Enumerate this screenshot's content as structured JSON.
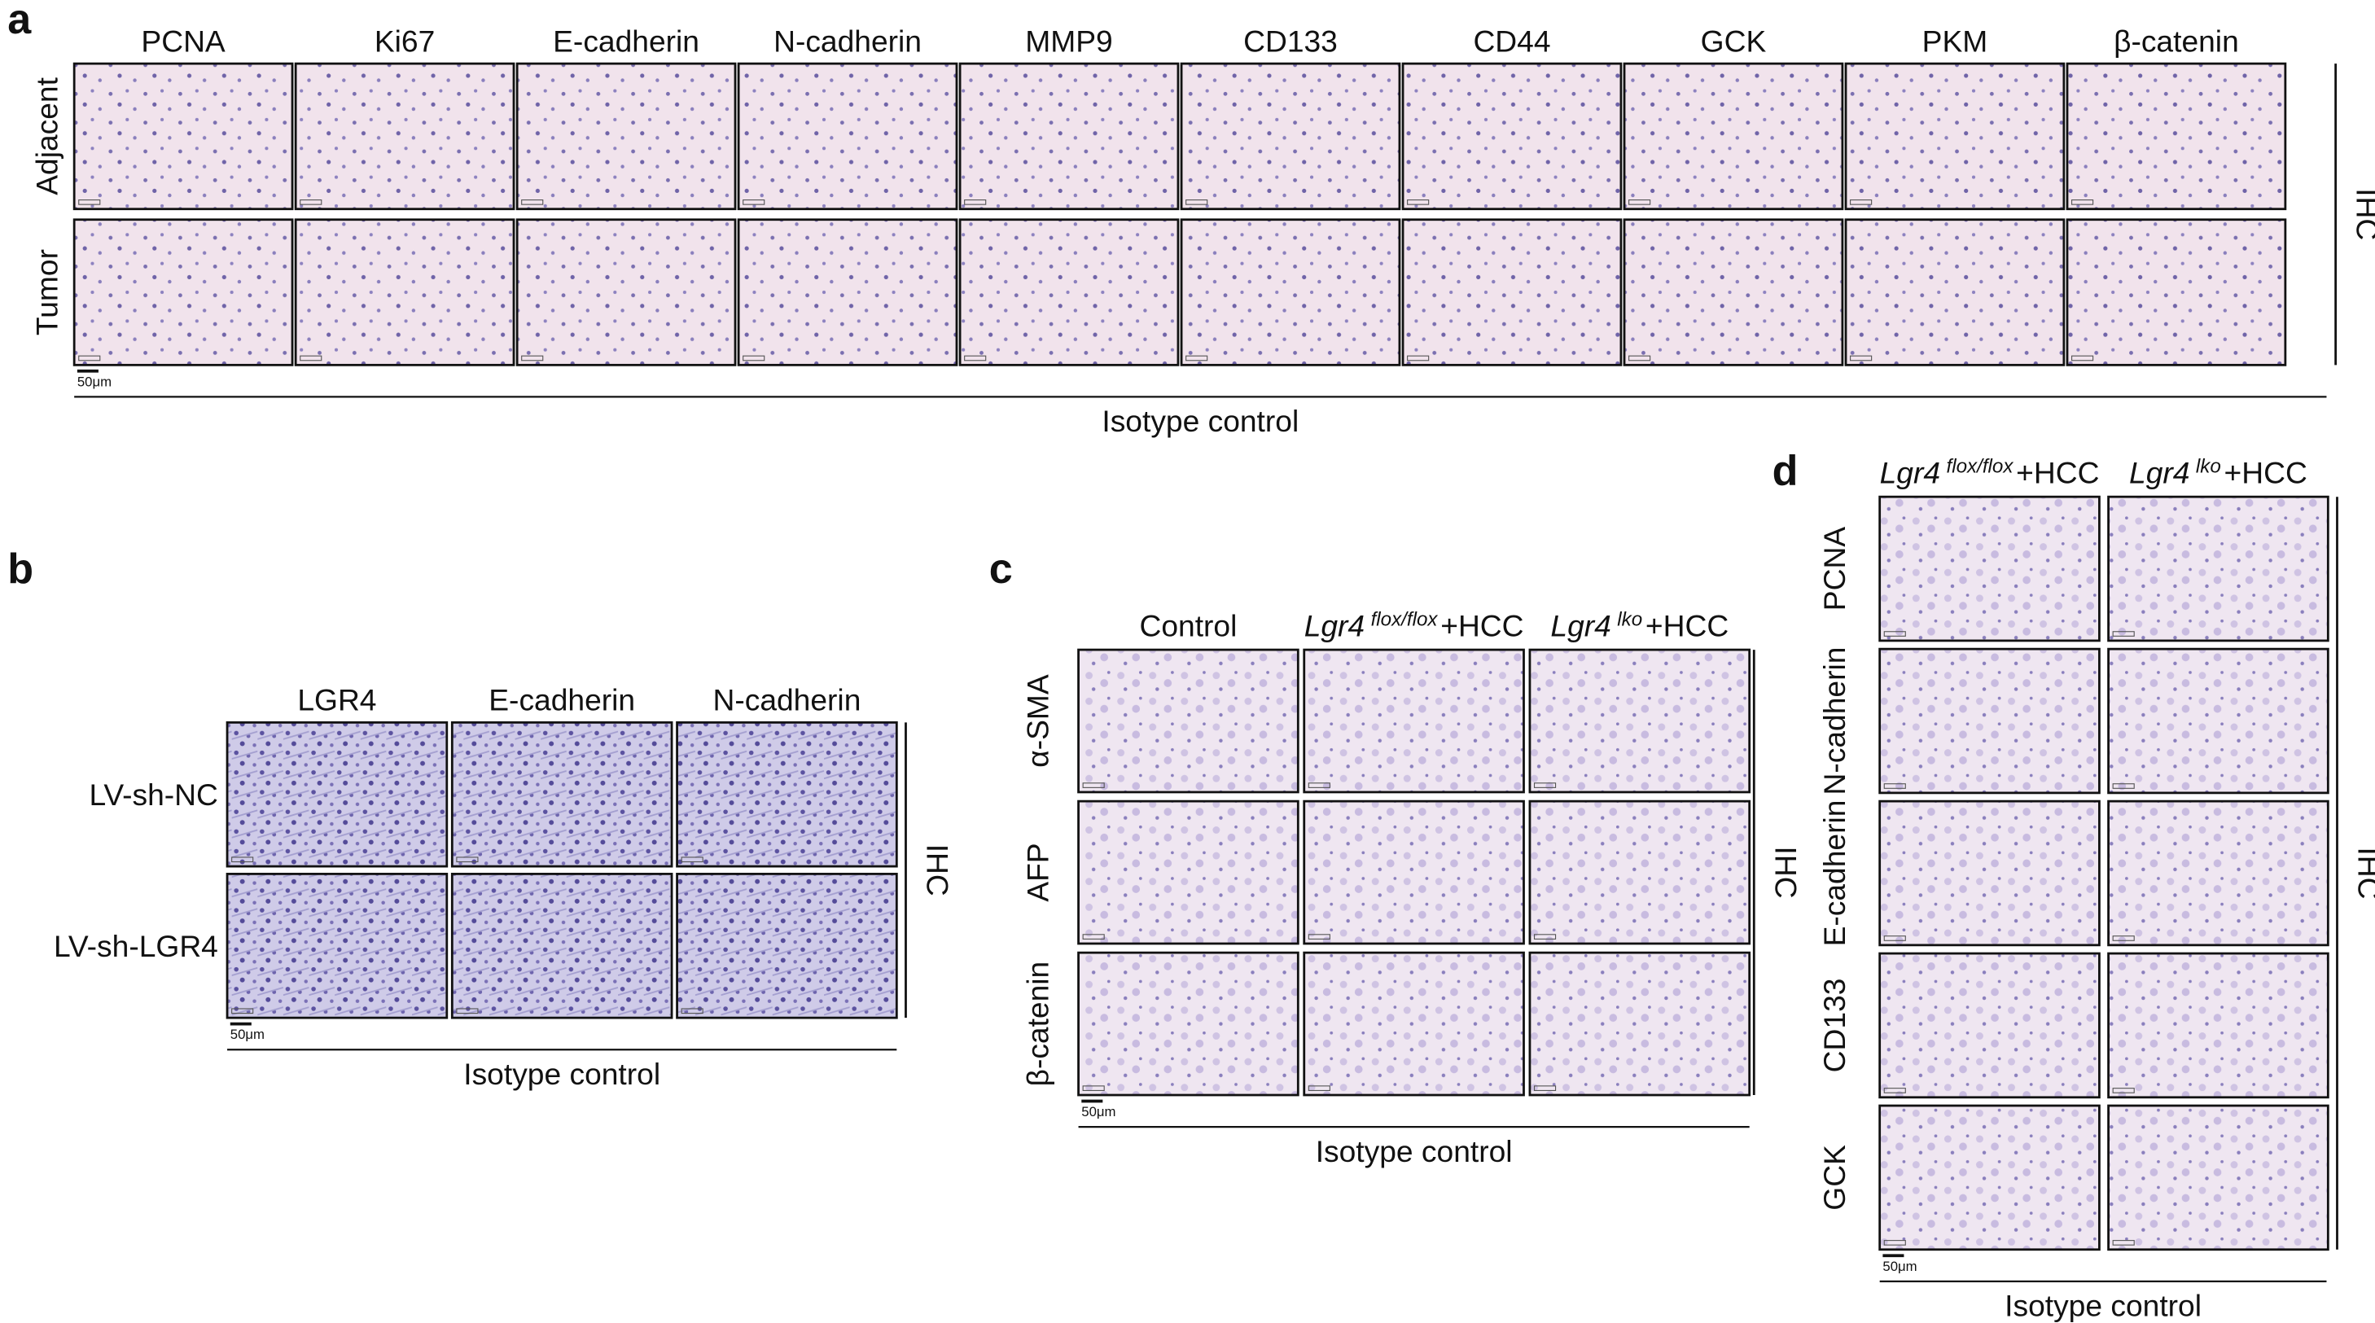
{
  "panels": [
    {
      "letter": "a",
      "columns": [
        {
          "text": "PCNA"
        },
        {
          "text": "Ki67"
        },
        {
          "text": "E-cadherin"
        },
        {
          "text": "N-cadherin"
        },
        {
          "text": "MMP9"
        },
        {
          "text": "CD133"
        },
        {
          "text": "CD44"
        },
        {
          "text": "GCK"
        },
        {
          "text": "PKM"
        },
        {
          "text": "β-catenin"
        }
      ],
      "rows": [
        "Adjacent",
        "Tumor"
      ],
      "side_label": "IHC",
      "scale_bar": "50μm",
      "footer": "Isotype control"
    },
    {
      "letter": "b",
      "columns": [
        {
          "text": "LGR4"
        },
        {
          "text": "E-cadherin"
        },
        {
          "text": "N-cadherin"
        }
      ],
      "rows": [
        "LV-sh-NC",
        "LV-sh-LGR4"
      ],
      "side_label": "IHC",
      "scale_bar": "50μm",
      "footer": "Isotype control"
    },
    {
      "letter": "c",
      "columns": [
        {
          "text": "Control"
        },
        {
          "gene": "Lgr4",
          "sup": "flox/flox",
          "suffix": "+HCC"
        },
        {
          "gene": "Lgr4",
          "sup": "lko",
          "suffix": "+HCC"
        }
      ],
      "rows": [
        "α-SMA",
        "AFP",
        "β-catenin"
      ],
      "side_label": "IHC",
      "scale_bar": "50μm",
      "footer": "Isotype control"
    },
    {
      "letter": "d",
      "columns": [
        {
          "gene": "Lgr4",
          "sup": "flox/flox",
          "suffix": "+HCC"
        },
        {
          "gene": "Lgr4",
          "sup": "lko",
          "suffix": "+HCC"
        }
      ],
      "rows": [
        "PCNA",
        "N-cadherin",
        "E-cadherin",
        "CD133",
        "GCK"
      ],
      "side_label": "IHC",
      "scale_bar": "50μm",
      "footer": "Isotype control"
    }
  ]
}
